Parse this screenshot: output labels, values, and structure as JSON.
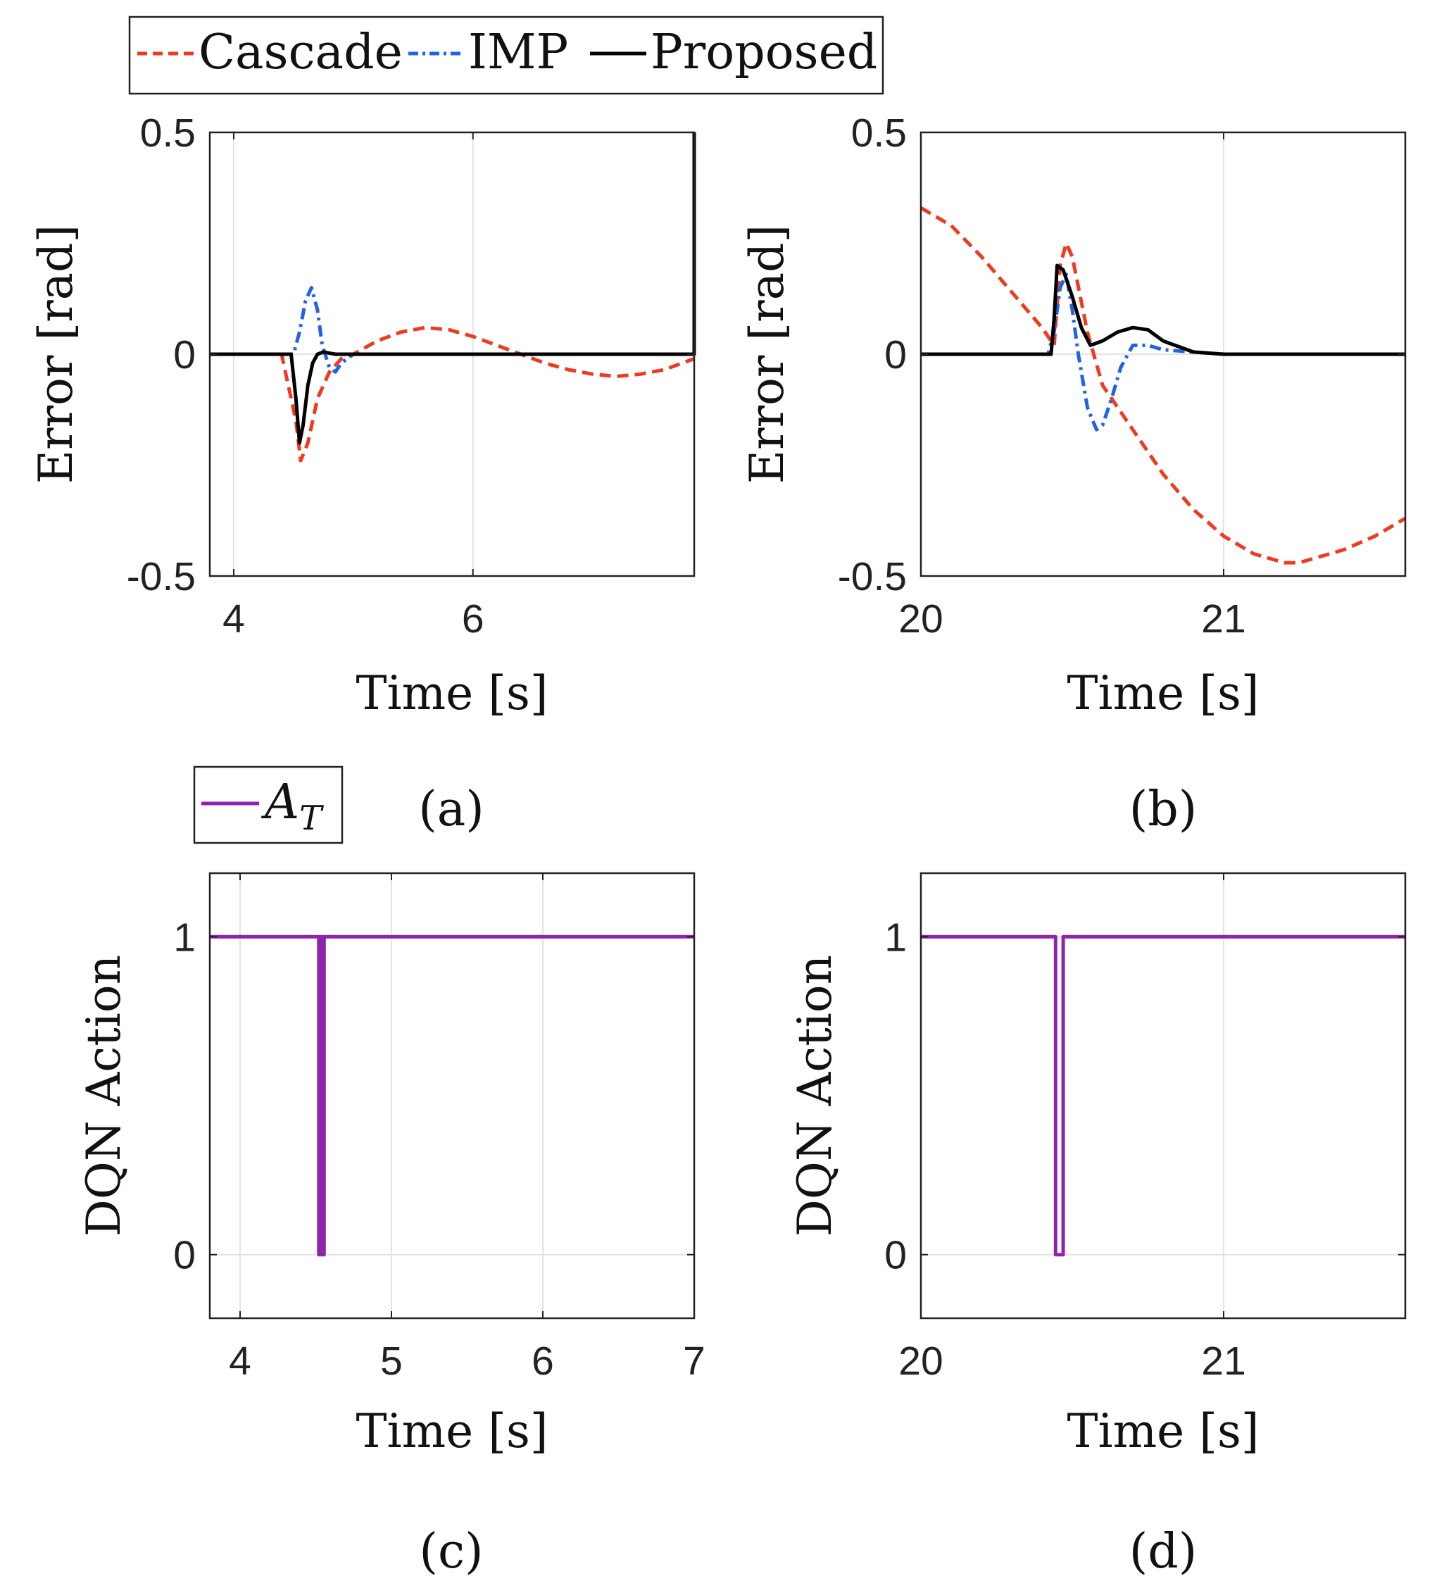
{
  "legend_top": {
    "entries": [
      {
        "label": "Cascade",
        "color": "#f0391e",
        "dash": "dashed"
      },
      {
        "label": "IMP",
        "color": "#1f63e6",
        "dash": "dashdot"
      },
      {
        "label": "Proposed",
        "color": "#000000",
        "dash": "solid"
      }
    ]
  },
  "legend_bottom": {
    "entries": [
      {
        "label": "A",
        "subscript": "T",
        "color": "#8e24aa",
        "dash": "solid"
      }
    ]
  },
  "panel_labels": [
    "(a)",
    "(b)",
    "(c)",
    "(d)"
  ],
  "chart_data": [
    {
      "id": "a",
      "type": "line",
      "xlabel": "Time [s]",
      "ylabel": "Error [rad]",
      "xlim": [
        3.8,
        7.85
      ],
      "ylim": [
        -0.5,
        0.5
      ],
      "xticks": [
        4,
        6
      ],
      "xtick_labels": [
        "4",
        "6"
      ],
      "yticks": [
        -0.5,
        0,
        0.5
      ],
      "ytick_labels": [
        "-0.5",
        "0",
        "0.5"
      ],
      "grid": true,
      "series": [
        {
          "name": "Cascade",
          "color": "#f0391e",
          "dash": "dashed",
          "x": [
            3.8,
            4.4,
            4.52,
            4.56,
            4.62,
            4.7,
            4.8,
            4.9,
            5.0,
            5.2,
            5.4,
            5.6,
            5.8,
            6.0,
            6.2,
            6.4,
            6.6,
            6.8,
            7.0,
            7.2,
            7.4,
            7.6,
            7.8,
            7.85
          ],
          "y": [
            0.0,
            0.0,
            -0.15,
            -0.24,
            -0.2,
            -0.1,
            -0.04,
            -0.01,
            0.0,
            0.03,
            0.05,
            0.06,
            0.055,
            0.04,
            0.02,
            0.0,
            -0.02,
            -0.035,
            -0.045,
            -0.05,
            -0.045,
            -0.035,
            -0.015,
            -0.01
          ]
        },
        {
          "name": "IMP",
          "color": "#1f63e6",
          "dash": "dashdot",
          "x": [
            3.8,
            4.5,
            4.55,
            4.6,
            4.65,
            4.7,
            4.74,
            4.8,
            4.85,
            4.9,
            5.0,
            5.1,
            5.3,
            6.0,
            7.0,
            7.85
          ],
          "y": [
            0.0,
            0.0,
            0.05,
            0.12,
            0.15,
            0.1,
            0.02,
            -0.03,
            -0.04,
            -0.02,
            0.0,
            0.0,
            0.0,
            0.0,
            0.0,
            0.0
          ]
        },
        {
          "name": "Proposed",
          "color": "#000000",
          "dash": "solid",
          "x": [
            3.8,
            4.48,
            4.52,
            4.55,
            4.58,
            4.62,
            4.66,
            4.7,
            4.75,
            4.85,
            5.0,
            6.0,
            7.0,
            7.84,
            7.85,
            7.85
          ],
          "y": [
            0.0,
            0.0,
            -0.1,
            -0.2,
            -0.16,
            -0.07,
            -0.02,
            0.0,
            0.005,
            0.0,
            0.0,
            0.0,
            0.0,
            0.0,
            0.0,
            0.5
          ]
        }
      ]
    },
    {
      "id": "b",
      "type": "line",
      "xlabel": "Time [s]",
      "ylabel": "Error [rad]",
      "xlim": [
        20.0,
        21.6
      ],
      "ylim": [
        -0.5,
        0.5
      ],
      "xticks": [
        20,
        21
      ],
      "xtick_labels": [
        "20",
        "21"
      ],
      "yticks": [
        -0.5,
        0,
        0.5
      ],
      "ytick_labels": [
        "-0.5",
        "0",
        "0.5"
      ],
      "grid": true,
      "series": [
        {
          "name": "Cascade",
          "color": "#f0391e",
          "dash": "dashed",
          "x": [
            20.0,
            20.1,
            20.2,
            20.3,
            20.4,
            20.44,
            20.46,
            20.48,
            20.5,
            20.55,
            20.6,
            20.7,
            20.8,
            20.9,
            21.0,
            21.1,
            21.2,
            21.25,
            21.3,
            21.4,
            21.5,
            21.6
          ],
          "y": [
            0.33,
            0.29,
            0.22,
            0.14,
            0.06,
            0.02,
            0.2,
            0.25,
            0.22,
            0.05,
            -0.07,
            -0.17,
            -0.27,
            -0.35,
            -0.41,
            -0.45,
            -0.47,
            -0.47,
            -0.46,
            -0.44,
            -0.41,
            -0.37
          ]
        },
        {
          "name": "IMP",
          "color": "#1f63e6",
          "dash": "dashdot",
          "x": [
            20.0,
            20.42,
            20.44,
            20.46,
            20.48,
            20.5,
            20.52,
            20.55,
            20.58,
            20.6,
            20.63,
            20.66,
            20.7,
            20.75,
            20.8,
            21.0,
            21.6
          ],
          "y": [
            0.0,
            0.0,
            0.05,
            0.15,
            0.18,
            0.1,
            0.0,
            -0.12,
            -0.17,
            -0.16,
            -0.1,
            -0.03,
            0.02,
            0.02,
            0.01,
            0.0,
            0.0
          ]
        },
        {
          "name": "Proposed",
          "color": "#000000",
          "dash": "solid",
          "x": [
            20.0,
            20.43,
            20.44,
            20.45,
            20.47,
            20.5,
            20.53,
            20.56,
            20.6,
            20.65,
            20.7,
            20.75,
            20.8,
            20.9,
            21.0,
            21.6
          ],
          "y": [
            0.0,
            0.0,
            0.08,
            0.2,
            0.19,
            0.13,
            0.06,
            0.02,
            0.03,
            0.05,
            0.06,
            0.055,
            0.03,
            0.005,
            0.0,
            0.0
          ]
        }
      ]
    },
    {
      "id": "c",
      "type": "line",
      "xlabel": "Time [s]",
      "ylabel": "DQN Action",
      "xlim": [
        3.8,
        7.0
      ],
      "ylim": [
        -0.2,
        1.2
      ],
      "xticks": [
        4,
        5,
        6,
        7
      ],
      "xtick_labels": [
        "4",
        "5",
        "6",
        "7"
      ],
      "yticks": [
        0,
        1
      ],
      "ytick_labels": [
        "0",
        "1"
      ],
      "grid": true,
      "series": [
        {
          "name": "A_T",
          "color": "#8e24aa",
          "dash": "solid",
          "x": [
            3.8,
            4.52,
            4.52,
            4.535,
            4.535,
            4.545,
            4.545,
            4.555,
            4.555,
            7.0
          ],
          "y": [
            1,
            1,
            0,
            0,
            1,
            1,
            0,
            0,
            1,
            1
          ]
        }
      ]
    },
    {
      "id": "d",
      "type": "line",
      "xlabel": "Time [s]",
      "ylabel": "DQN Action",
      "xlim": [
        20.0,
        21.6
      ],
      "ylim": [
        -0.2,
        1.2
      ],
      "xticks": [
        20,
        21
      ],
      "xtick_labels": [
        "20",
        "21"
      ],
      "yticks": [
        0,
        1
      ],
      "ytick_labels": [
        "0",
        "1"
      ],
      "grid": true,
      "series": [
        {
          "name": "A_T",
          "color": "#8e24aa",
          "dash": "solid",
          "x": [
            20.0,
            20.445,
            20.445,
            20.47,
            20.47,
            21.6
          ],
          "y": [
            1,
            1,
            0,
            0,
            1,
            1
          ]
        }
      ]
    }
  ]
}
